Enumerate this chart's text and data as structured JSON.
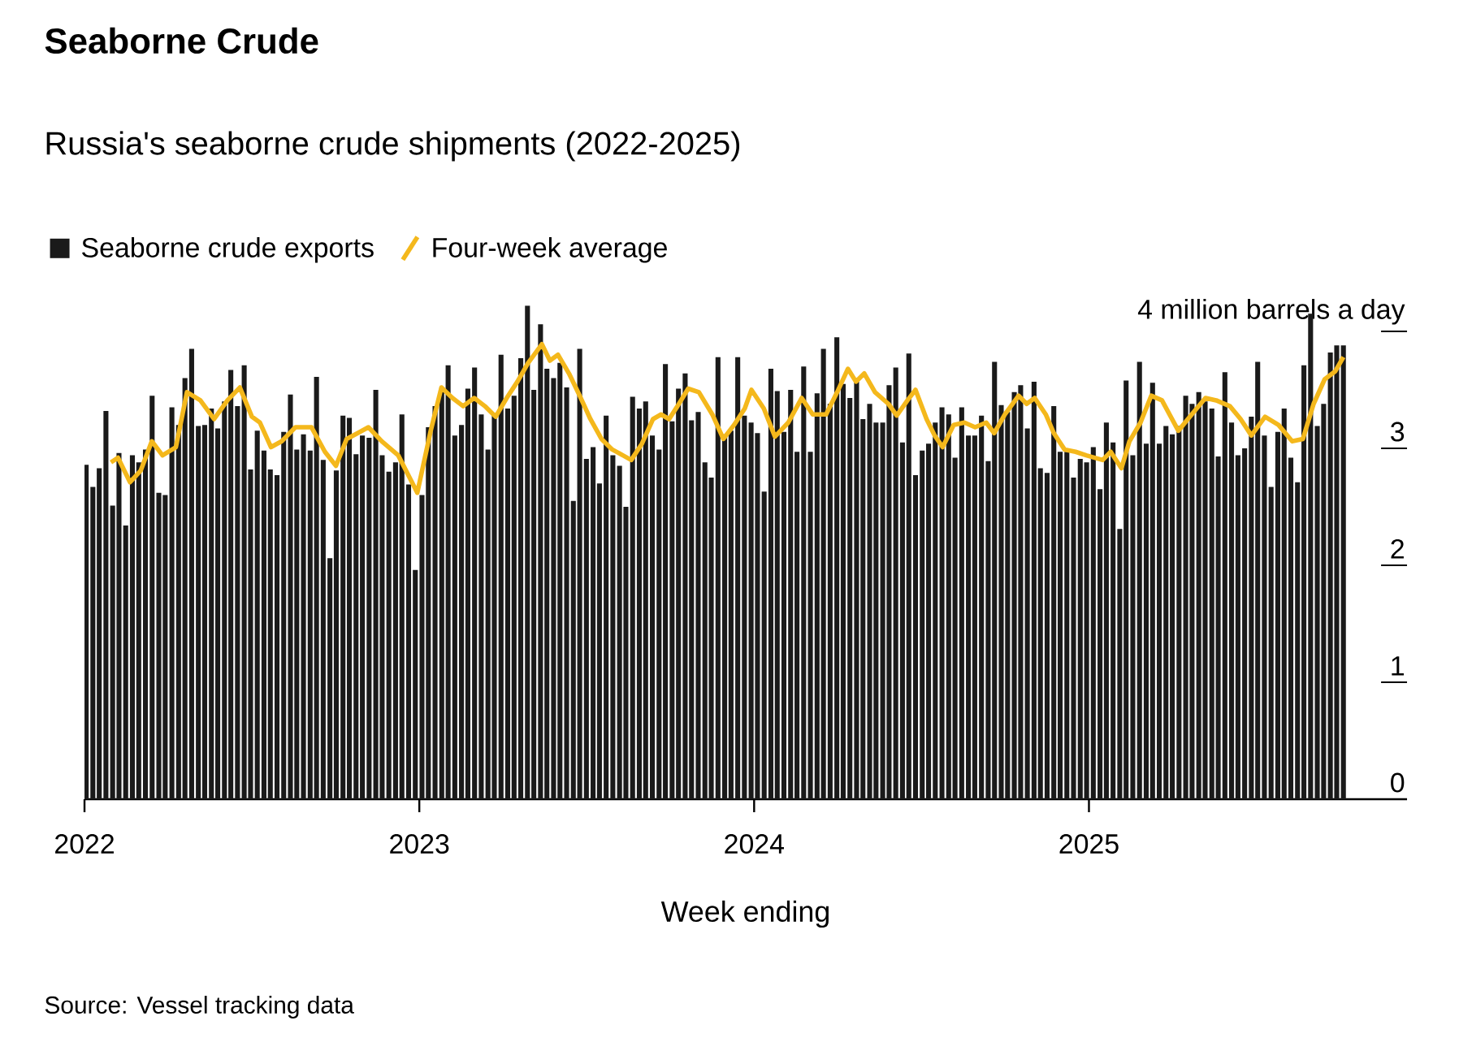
{
  "chart_data": {
    "type": "bar",
    "title": "Seaborne Crude",
    "subtitle": "Russia's seaborne crude shipments (2022-2025)",
    "xlabel": "Week ending",
    "annotations": [
      "Source: Vessel tracking data"
    ],
    "x": [
      2022.005,
      2022.025,
      2022.044,
      2022.064,
      2022.084,
      2022.103,
      2022.123,
      2022.143,
      2022.162,
      2022.182,
      2022.202,
      2022.222,
      2022.241,
      2022.261,
      2022.281,
      2022.3,
      2022.32,
      2022.34,
      2022.359,
      2022.379,
      2022.398,
      2022.418,
      2022.437,
      2022.457,
      2022.477,
      2022.496,
      2022.516,
      2022.536,
      2022.555,
      2022.575,
      2022.595,
      2022.615,
      2022.634,
      2022.654,
      2022.674,
      2022.693,
      2022.713,
      2022.733,
      2022.752,
      2022.772,
      2022.791,
      2022.811,
      2022.83,
      2022.85,
      2022.87,
      2022.889,
      2022.909,
      2022.929,
      2022.948,
      2022.968,
      2022.988,
      2023.008,
      2023.027,
      2023.047,
      2023.067,
      2023.086,
      2023.106,
      2023.126,
      2023.145,
      2023.165,
      2023.185,
      2023.205,
      2023.224,
      2023.244,
      2023.264,
      2023.283,
      2023.303,
      2023.323,
      2023.342,
      2023.362,
      2023.381,
      2023.401,
      2023.42,
      2023.44,
      2023.46,
      2023.479,
      2023.499,
      2023.519,
      2023.538,
      2023.558,
      2023.578,
      2023.598,
      2023.617,
      2023.637,
      2023.657,
      2023.676,
      2023.696,
      2023.716,
      2023.735,
      2023.755,
      2023.774,
      2023.794,
      2023.813,
      2023.833,
      2023.853,
      2023.872,
      2023.892,
      2023.912,
      2023.931,
      2023.951,
      2023.971,
      2023.991,
      2024.01,
      2024.03,
      2024.05,
      2024.069,
      2024.089,
      2024.109,
      2024.128,
      2024.148,
      2024.168,
      2024.188,
      2024.207,
      2024.227,
      2024.247,
      2024.266,
      2024.286,
      2024.306,
      2024.325,
      2024.345,
      2024.364,
      2024.384,
      2024.403,
      2024.423,
      2024.443,
      2024.462,
      2024.482,
      2024.502,
      2024.521,
      2024.541,
      2024.561,
      2024.581,
      2024.6,
      2024.62,
      2024.64,
      2024.659,
      2024.679,
      2024.699,
      2024.718,
      2024.738,
      2024.757,
      2024.777,
      2024.796,
      2024.816,
      2024.836,
      2024.855,
      2024.875,
      2024.895,
      2024.914,
      2024.934,
      2024.954,
      2024.974,
      2024.993,
      2025.013,
      2025.033,
      2025.052,
      2025.072,
      2025.092,
      2025.111,
      2025.131,
      2025.151,
      2025.171,
      2025.19,
      2025.21,
      2025.23,
      2025.249,
      2025.269,
      2025.289,
      2025.308,
      2025.328,
      2025.347,
      2025.367,
      2025.386,
      2025.406,
      2025.426,
      2025.445,
      2025.465,
      2025.485,
      2025.504,
      2025.524,
      2025.544,
      2025.564,
      2025.583,
      2025.603,
      2025.623,
      2025.642,
      2025.662,
      2025.682,
      2025.701,
      2025.721,
      2025.74,
      2025.76
    ],
    "xlim": [
      2022,
      2025.95
    ],
    "xticks": [
      2022,
      2023,
      2024,
      2025
    ],
    "ylim": [
      0,
      4.22
    ],
    "yticks": [
      0,
      1,
      2,
      3,
      {
        "value": 4,
        "label": "4 million barrels a day"
      }
    ],
    "legend": "top left",
    "series": [
      {
        "name": "Seaborne crude exports",
        "color": "#1a1a1a",
        "values": [
          2.86,
          2.67,
          2.83,
          3.32,
          2.51,
          2.96,
          2.34,
          2.94,
          2.88,
          2.99,
          3.45,
          2.62,
          2.6,
          3.35,
          3.2,
          3.6,
          3.85,
          3.19,
          3.2,
          3.34,
          3.17,
          3.4,
          3.67,
          3.36,
          3.71,
          2.82,
          3.15,
          2.98,
          2.82,
          2.77,
          3.14,
          3.46,
          2.99,
          3.12,
          2.98,
          3.61,
          2.9,
          2.06,
          2.81,
          3.28,
          3.26,
          2.95,
          3.11,
          3.09,
          3.5,
          2.94,
          2.8,
          2.88,
          3.29,
          2.69,
          1.96,
          2.6,
          3.18,
          3.36,
          3.48,
          3.71,
          3.11,
          3.2,
          3.51,
          3.69,
          3.29,
          2.99,
          3.29,
          3.8,
          3.34,
          3.45,
          3.77,
          4.22,
          3.5,
          4.06,
          3.68,
          3.6,
          3.73,
          3.52,
          2.55,
          3.85,
          2.91,
          3.01,
          2.7,
          3.28,
          2.94,
          2.85,
          2.5,
          3.44,
          3.34,
          3.4,
          3.11,
          2.99,
          3.72,
          3.23,
          3.51,
          3.64,
          3.24,
          3.31,
          2.88,
          2.75,
          3.78,
          3.12,
          3.15,
          3.78,
          3.28,
          3.22,
          3.13,
          2.63,
          3.68,
          3.49,
          3.14,
          3.5,
          2.97,
          3.7,
          2.97,
          3.47,
          3.85,
          3.38,
          3.95,
          3.55,
          3.43,
          3.57,
          3.25,
          3.38,
          3.22,
          3.22,
          3.54,
          3.69,
          3.05,
          3.81,
          2.77,
          2.98,
          3.04,
          3.22,
          3.35,
          3.29,
          2.92,
          3.35,
          3.11,
          3.11,
          3.28,
          2.89,
          3.74,
          3.37,
          3.31,
          3.48,
          3.54,
          3.17,
          3.57,
          2.83,
          2.79,
          3.36,
          2.97,
          2.97,
          2.75,
          2.91,
          2.88,
          3.01,
          2.65,
          3.22,
          3.05,
          2.31,
          3.58,
          2.94,
          3.74,
          3.04,
          3.56,
          3.04,
          3.19,
          3.12,
          3.19,
          3.45,
          3.38,
          3.48,
          3.4,
          3.34,
          2.93,
          3.65,
          3.22,
          2.94,
          3.0,
          3.27,
          3.74,
          3.11,
          2.67,
          3.14,
          3.34,
          2.92,
          2.71,
          3.71,
          4.15,
          3.19,
          3.38,
          3.82,
          3.88,
          3.88
        ]
      },
      {
        "name": "Four-week average",
        "type": "line",
        "color": "#f4b81c",
        "x": [
          2022.079,
          2022.1,
          2022.136,
          2022.168,
          2022.201,
          2022.233,
          2022.273,
          2022.306,
          2022.346,
          2022.387,
          2022.427,
          2022.464,
          2022.5,
          2022.524,
          2022.557,
          2022.589,
          2022.63,
          2022.678,
          2022.718,
          2022.751,
          2022.783,
          2022.816,
          2022.848,
          2022.888,
          2022.937,
          2022.994,
          2023.034,
          2023.066,
          2023.099,
          2023.131,
          2023.164,
          2023.196,
          2023.228,
          2023.261,
          2023.293,
          2023.325,
          2023.366,
          2023.39,
          2023.414,
          2023.447,
          2023.479,
          2023.511,
          2023.544,
          2023.576,
          2023.608,
          2023.633,
          2023.665,
          2023.698,
          2023.722,
          2023.746,
          2023.771,
          2023.803,
          2023.835,
          2023.875,
          2023.908,
          2023.94,
          2023.972,
          2023.992,
          2024.029,
          2024.062,
          2024.102,
          2024.142,
          2024.175,
          2024.215,
          2024.248,
          2024.28,
          2024.304,
          2024.329,
          2024.361,
          2024.401,
          2024.426,
          2024.458,
          2024.482,
          2024.515,
          2024.539,
          2024.563,
          2024.596,
          2024.628,
          2024.66,
          2024.693,
          2024.717,
          2024.749,
          2024.79,
          2024.814,
          2024.838,
          2024.871,
          2024.895,
          2024.927,
          2024.96,
          2024.992,
          2025.041,
          2025.065,
          2025.097,
          2025.121,
          2025.154,
          2025.186,
          2025.218,
          2025.267,
          2025.307,
          2025.348,
          2025.38,
          2025.421,
          2025.453,
          2025.485,
          2025.526,
          2025.566,
          2025.607,
          2025.639,
          2025.671,
          2025.704,
          2025.736,
          2025.76
        ],
        "values": [
          2.88,
          2.92,
          2.71,
          2.81,
          3.06,
          2.94,
          3.01,
          3.48,
          3.41,
          3.25,
          3.41,
          3.52,
          3.27,
          3.22,
          3.01,
          3.06,
          3.18,
          3.18,
          2.97,
          2.85,
          3.08,
          3.13,
          3.18,
          3.06,
          2.94,
          2.62,
          3.15,
          3.52,
          3.43,
          3.36,
          3.43,
          3.36,
          3.27,
          3.43,
          3.57,
          3.73,
          3.89,
          3.75,
          3.8,
          3.64,
          3.45,
          3.25,
          3.08,
          2.99,
          2.94,
          2.9,
          3.04,
          3.25,
          3.29,
          3.25,
          3.36,
          3.51,
          3.48,
          3.29,
          3.08,
          3.2,
          3.34,
          3.5,
          3.34,
          3.1,
          3.22,
          3.43,
          3.29,
          3.29,
          3.48,
          3.68,
          3.57,
          3.64,
          3.48,
          3.38,
          3.28,
          3.41,
          3.5,
          3.25,
          3.11,
          3.01,
          3.2,
          3.22,
          3.18,
          3.22,
          3.13,
          3.29,
          3.45,
          3.38,
          3.43,
          3.29,
          3.13,
          2.99,
          2.97,
          2.94,
          2.9,
          2.97,
          2.83,
          3.06,
          3.22,
          3.45,
          3.41,
          3.15,
          3.29,
          3.43,
          3.41,
          3.36,
          3.25,
          3.11,
          3.27,
          3.2,
          3.06,
          3.08,
          3.38,
          3.59,
          3.66,
          3.78
        ]
      }
    ]
  }
}
